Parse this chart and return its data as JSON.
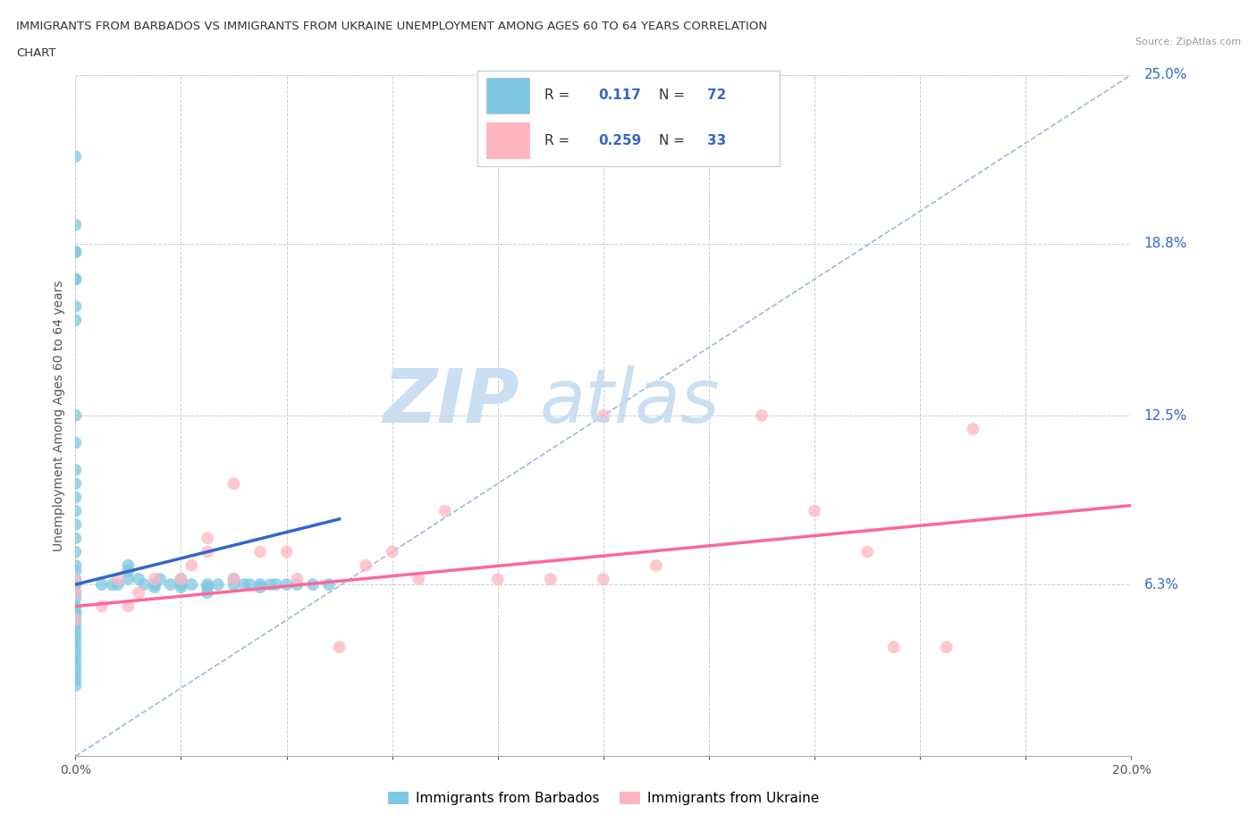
{
  "title_line1": "IMMIGRANTS FROM BARBADOS VS IMMIGRANTS FROM UKRAINE UNEMPLOYMENT AMONG AGES 60 TO 64 YEARS CORRELATION",
  "title_line2": "CHART",
  "source_text": "Source: ZipAtlas.com",
  "ylabel": "Unemployment Among Ages 60 to 64 years",
  "xlim": [
    0.0,
    0.2
  ],
  "ylim": [
    0.0,
    0.25
  ],
  "ytick_values": [
    0.0,
    0.063,
    0.125,
    0.188,
    0.25
  ],
  "ytick_labels": [
    "",
    "6.3%",
    "12.5%",
    "18.8%",
    "25.0%"
  ],
  "barbados_color": "#7EC8E3",
  "ukraine_color": "#FFB6C1",
  "barbados_R": 0.117,
  "barbados_N": 72,
  "ukraine_R": 0.259,
  "ukraine_N": 33,
  "legend_num_color": "#3366CC",
  "legend_label_color": "#333333",
  "watermark_zip_color": "#C5DCF0",
  "watermark_atlas_color": "#C5DCF0",
  "grid_color": "#CCCCCC",
  "trendline_barbados_color": "#3366CC",
  "trendline_ukraine_color": "#FF6699",
  "diag_line_color": "#99BBDD",
  "barbados_scatter_x": [
    0.0,
    0.0,
    0.0,
    0.0,
    0.0,
    0.0,
    0.0,
    0.0,
    0.0,
    0.0,
    0.0,
    0.0,
    0.0,
    0.0,
    0.0,
    0.0,
    0.0,
    0.0,
    0.0,
    0.0,
    0.0,
    0.0,
    0.0,
    0.0,
    0.0,
    0.0,
    0.0,
    0.0,
    0.0,
    0.0,
    0.0,
    0.0,
    0.0,
    0.0,
    0.0,
    0.0,
    0.0,
    0.0,
    0.0,
    0.0,
    0.005,
    0.007,
    0.008,
    0.01,
    0.01,
    0.01,
    0.012,
    0.013,
    0.015,
    0.015,
    0.016,
    0.018,
    0.02,
    0.02,
    0.02,
    0.022,
    0.025,
    0.025,
    0.025,
    0.027,
    0.03,
    0.03,
    0.032,
    0.033,
    0.035,
    0.035,
    0.037,
    0.038,
    0.04,
    0.042,
    0.045,
    0.048
  ],
  "barbados_scatter_y": [
    0.22,
    0.195,
    0.185,
    0.185,
    0.175,
    0.175,
    0.165,
    0.16,
    0.125,
    0.115,
    0.105,
    0.1,
    0.095,
    0.09,
    0.085,
    0.08,
    0.075,
    0.07,
    0.068,
    0.065,
    0.063,
    0.063,
    0.06,
    0.058,
    0.055,
    0.053,
    0.052,
    0.05,
    0.048,
    0.046,
    0.044,
    0.042,
    0.04,
    0.038,
    0.036,
    0.034,
    0.032,
    0.03,
    0.028,
    0.026,
    0.063,
    0.063,
    0.063,
    0.07,
    0.068,
    0.065,
    0.065,
    0.063,
    0.063,
    0.062,
    0.065,
    0.063,
    0.065,
    0.063,
    0.062,
    0.063,
    0.063,
    0.062,
    0.06,
    0.063,
    0.065,
    0.063,
    0.063,
    0.063,
    0.063,
    0.062,
    0.063,
    0.063,
    0.063,
    0.063,
    0.063,
    0.063
  ],
  "ukraine_scatter_x": [
    0.0,
    0.0,
    0.0,
    0.005,
    0.008,
    0.01,
    0.012,
    0.015,
    0.02,
    0.022,
    0.025,
    0.025,
    0.03,
    0.03,
    0.035,
    0.04,
    0.042,
    0.05,
    0.055,
    0.06,
    0.065,
    0.07,
    0.08,
    0.09,
    0.1,
    0.1,
    0.11,
    0.13,
    0.14,
    0.15,
    0.155,
    0.165,
    0.17
  ],
  "ukraine_scatter_y": [
    0.05,
    0.06,
    0.065,
    0.055,
    0.065,
    0.055,
    0.06,
    0.065,
    0.065,
    0.07,
    0.075,
    0.08,
    0.065,
    0.1,
    0.075,
    0.075,
    0.065,
    0.04,
    0.07,
    0.075,
    0.065,
    0.09,
    0.065,
    0.065,
    0.065,
    0.125,
    0.07,
    0.125,
    0.09,
    0.075,
    0.04,
    0.04,
    0.12
  ]
}
